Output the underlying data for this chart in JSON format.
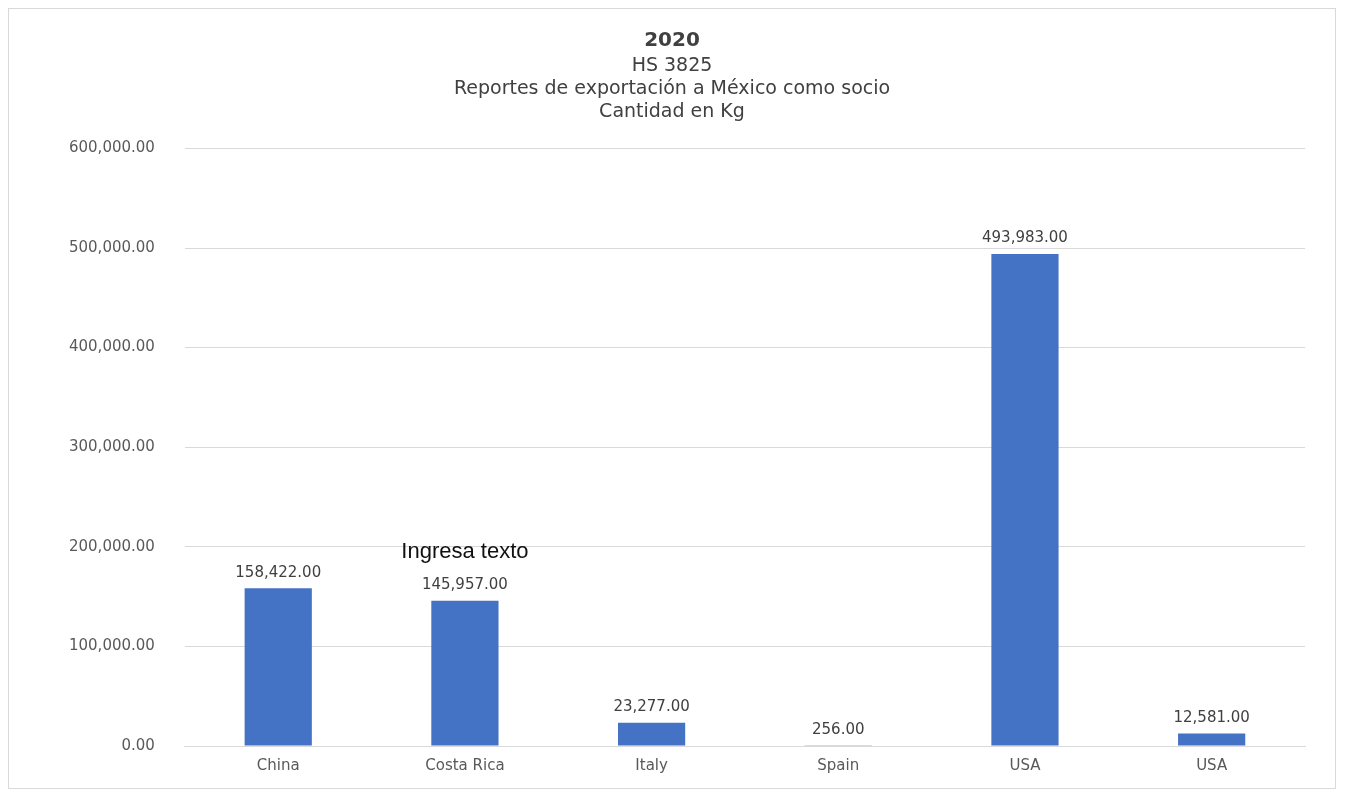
{
  "chart_data": {
    "type": "bar",
    "title": "2020",
    "subtitle": "HS 3825\nReportes de exportación a México como socio\nCantidad en Kg",
    "categories": [
      "China",
      "Costa Rica",
      "Italy",
      "Spain",
      "USA",
      "USA"
    ],
    "values": [
      158422,
      145957,
      23277,
      256,
      493983,
      12581
    ],
    "color": "#4472c4",
    "ylim": [
      0,
      600000
    ],
    "yticks": [
      {
        "value": 0,
        "label": "0.00"
      },
      {
        "value": 100000,
        "label": "100,000.00"
      },
      {
        "value": 200000,
        "label": "200,000.00"
      },
      {
        "value": 300000,
        "label": "300,000.00"
      },
      {
        "value": 400000,
        "label": "400,000.00"
      },
      {
        "value": 500000,
        "label": "500,000.00"
      },
      {
        "value": 600000,
        "label": "600,000.00"
      }
    ],
    "value_labels": [
      "158,422.00",
      "145,957.00",
      "23,277.00",
      "256.00",
      "493,983.00",
      "12,581.00"
    ],
    "grid": "y",
    "legend": false,
    "annotations": [
      "Ingresa texto"
    ]
  }
}
